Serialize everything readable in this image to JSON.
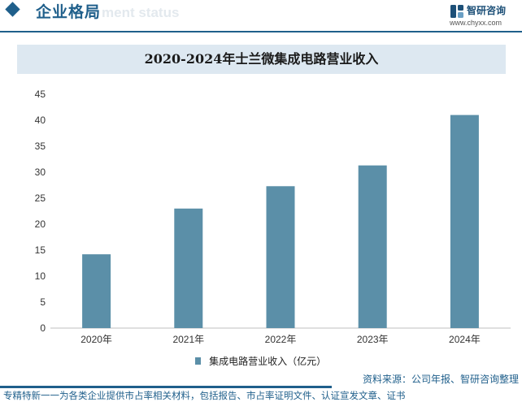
{
  "header": {
    "section_title": "企业格局",
    "section_title_ghost": "ment status",
    "logo_name": "智研咨询",
    "logo_url": "www.chyxx.com"
  },
  "chart_data": {
    "type": "bar",
    "title": "2020-2024年士兰微集成电路营业收入",
    "categories": [
      "2020年",
      "2021年",
      "2022年",
      "2023年",
      "2024年"
    ],
    "series": [
      {
        "name": "集成电路营业收入（亿元）",
        "values": [
          14.2,
          23.0,
          27.3,
          31.3,
          41.0
        ]
      }
    ],
    "ylim": [
      0,
      45
    ],
    "yticks": [
      0,
      5,
      10,
      15,
      20,
      25,
      30,
      35,
      40,
      45
    ],
    "xlabel": "",
    "ylabel": "",
    "grid": false,
    "legend_position": "bottom",
    "bar_color": "#5b8fa8"
  },
  "source": "资料来源：公司年报、智研咨询整理",
  "footer_note": "专精特新一一为各类企业提供市占率相关材料，包括报告、市占率证明文件、认证宣发文章、证书"
}
